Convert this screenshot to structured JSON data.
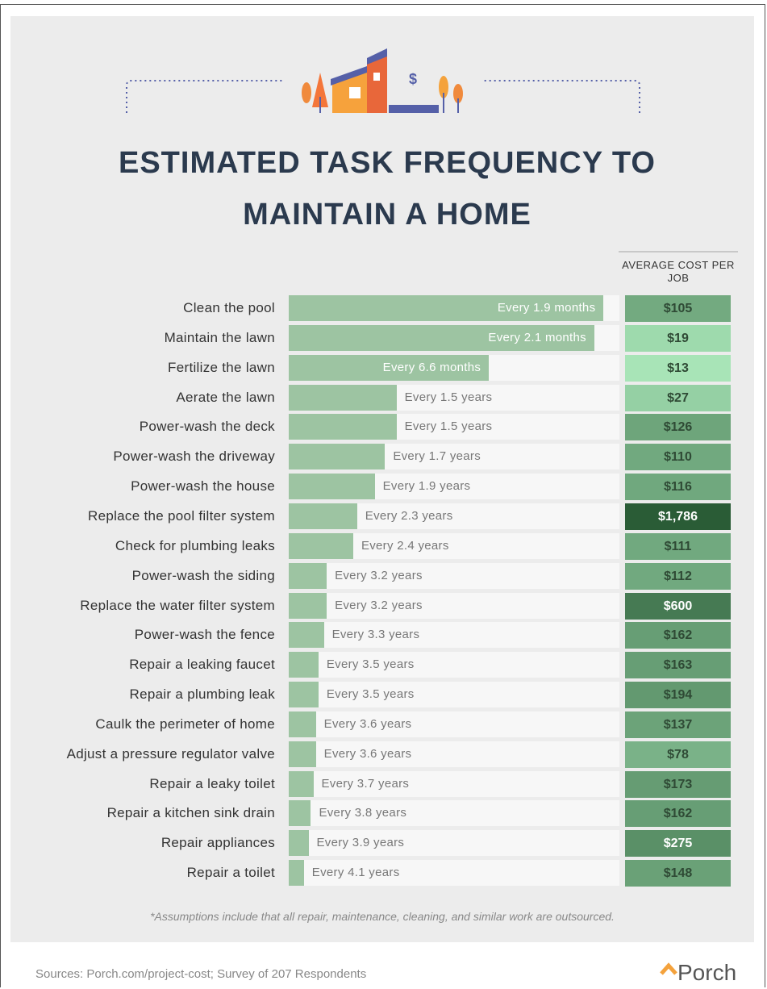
{
  "chart_data": {
    "type": "bar",
    "title": "ESTIMATED TASK FREQUENCY TO MAINTAIN A HOME",
    "categories": [
      "Clean the pool",
      "Maintain the lawn",
      "Fertilize the lawn",
      "Aerate the lawn",
      "Power-wash the deck",
      "Power-wash the driveway",
      "Power-wash the house",
      "Replace the pool filter system",
      "Check for plumbing leaks",
      "Power-wash the siding",
      "Replace the water filter system",
      "Power-wash the fence",
      "Repair a leaking faucet",
      "Repair a plumbing leak",
      "Caulk the perimeter of home",
      "Adjust a pressure regulator valve",
      "Repair a leaky toilet",
      "Repair a kitchen sink drain",
      "Repair appliances",
      "Repair a toilet"
    ],
    "values": [
      1.9,
      2.1,
      6.6,
      18,
      18,
      20.4,
      22.8,
      27.6,
      28.8,
      38.4,
      38.4,
      39.6,
      42,
      42,
      43.2,
      43.2,
      44.4,
      45.6,
      46.8,
      49.2
    ],
    "value_labels": [
      "Every 1.9 months",
      "Every 2.1 months",
      "Every 6.6 months",
      "Every 1.5 years",
      "Every 1.5 years",
      "Every 1.7 years",
      "Every 1.9 years",
      "Every 2.3 years",
      "Every 2.4 years",
      "Every 3.2 years",
      "Every 3.2 years",
      "Every 3.3 years",
      "Every 3.5 years",
      "Every 3.5 years",
      "Every 3.6 years",
      "Every 3.6 years",
      "Every 3.7 years",
      "Every 3.8 years",
      "Every 3.9 years",
      "Every 4.1 years"
    ],
    "color": "#9dc4a2",
    "xlim": [
      58,
      1.6
    ],
    "log_scale": true,
    "costs": {
      "name": "AVERAGE COST PER JOB",
      "values": [
        105,
        19,
        13,
        27,
        126,
        110,
        116,
        1786,
        111,
        112,
        600,
        162,
        163,
        194,
        137,
        78,
        173,
        162,
        275,
        148
      ],
      "value_labels": [
        "$105",
        "$19",
        "$13",
        "$27",
        "$126",
        "$110",
        "$116",
        "$1,786",
        "$111",
        "$112",
        "$600",
        "$162",
        "$163",
        "$194",
        "$137",
        "$78",
        "$173",
        "$162",
        "$275",
        "$148"
      ],
      "colors": [
        "#a8e4b7",
        "#2a5c36"
      ]
    },
    "note": "*Assumptions include that all repair, maintenance, cleaning, and similar work are outsourced.",
    "source": "Sources: Porch.com/project-cost; Survey of 207 Respondents",
    "brand": "Porch"
  }
}
